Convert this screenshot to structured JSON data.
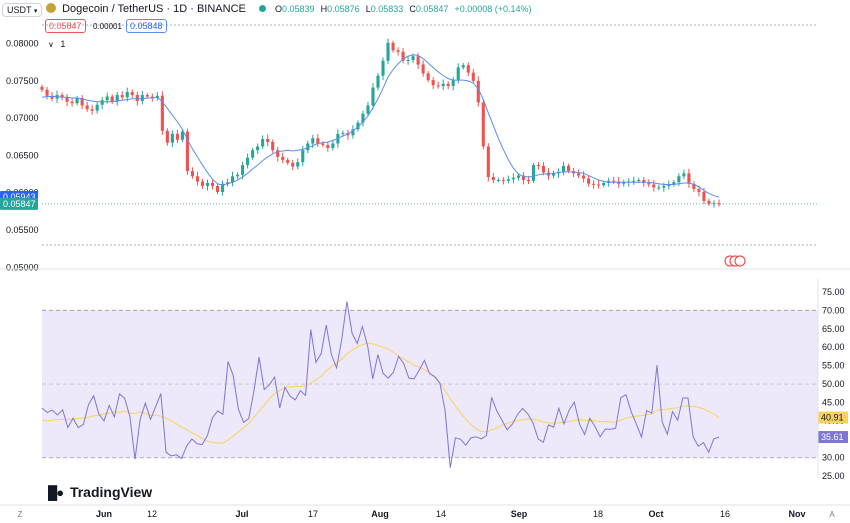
{
  "header": {
    "currency": "USDT",
    "title": "Dogecoin / TetherUS · 1D · BINANCE",
    "ohlc": {
      "o_label": "O",
      "o": "0.05839",
      "h_label": "H",
      "h": "0.05876",
      "l_label": "L",
      "l": "0.05833",
      "c_label": "C",
      "c": "0.05847",
      "change": "+0.00008 (+0.14%)"
    },
    "sell_price": "0.05847",
    "spread": "0.00001",
    "buy_price": "0.05848",
    "indicator_count": "1"
  },
  "branding": {
    "logo_text": "TradingView"
  },
  "colors": {
    "up": "#26a69a",
    "down": "#ef5350",
    "ma": "#5b8def",
    "rsi": "#7e75d6",
    "rsi_ma": "#f7d35c",
    "rsi_band": "#ede9fb"
  },
  "chart_data": [
    {
      "type": "candlestick",
      "title": "Dogecoin / TetherUS · 1D · BINANCE",
      "y_ticks": [
        "0.08000",
        "0.07500",
        "0.07000",
        "0.06500",
        "0.06000",
        "0.05500",
        "0.05000"
      ],
      "ylim": [
        0.0499,
        0.0837
      ],
      "x_ticks": [
        "Jun",
        "12",
        "Jul",
        "17",
        "Aug",
        "14",
        "Sep",
        "18",
        "Oct",
        "16",
        "Nov"
      ],
      "price_labels": {
        "ma_value": "0.05943",
        "last_price": "0.05847"
      },
      "candles_close": [
        0.0738,
        0.073,
        0.0726,
        0.0731,
        0.0728,
        0.0722,
        0.072,
        0.0727,
        0.0717,
        0.0712,
        0.071,
        0.0718,
        0.0724,
        0.0729,
        0.0722,
        0.0731,
        0.0728,
        0.0735,
        0.0731,
        0.0723,
        0.0731,
        0.0729,
        0.0727,
        0.073,
        0.0683,
        0.0667,
        0.0679,
        0.0671,
        0.0682,
        0.0629,
        0.0622,
        0.0615,
        0.0609,
        0.0613,
        0.0609,
        0.0601,
        0.0612,
        0.0614,
        0.0622,
        0.0624,
        0.0637,
        0.0647,
        0.0657,
        0.0662,
        0.0672,
        0.0668,
        0.0657,
        0.0648,
        0.0644,
        0.064,
        0.0635,
        0.0641,
        0.0657,
        0.0666,
        0.0673,
        0.0666,
        0.0664,
        0.066,
        0.0666,
        0.0679,
        0.068,
        0.0677,
        0.0685,
        0.0694,
        0.0706,
        0.0717,
        0.0741,
        0.0757,
        0.0777,
        0.0801,
        0.0791,
        0.0789,
        0.0777,
        0.0778,
        0.0783,
        0.0772,
        0.076,
        0.0751,
        0.0744,
        0.0743,
        0.0746,
        0.0743,
        0.0751,
        0.0768,
        0.0771,
        0.0761,
        0.075,
        0.0721,
        0.0662,
        0.0621,
        0.0617,
        0.0617,
        0.0616,
        0.0618,
        0.062,
        0.0623,
        0.0617,
        0.0616,
        0.0637,
        0.0636,
        0.0627,
        0.0623,
        0.0626,
        0.0628,
        0.0636,
        0.0629,
        0.0626,
        0.0623,
        0.0619,
        0.0612,
        0.0611,
        0.061,
        0.0613,
        0.0616,
        0.0615,
        0.0612,
        0.0614,
        0.0615,
        0.0616,
        0.0617,
        0.0613,
        0.0611,
        0.0607,
        0.0607,
        0.0609,
        0.0611,
        0.0614,
        0.0622,
        0.0626,
        0.0612,
        0.0605,
        0.0601,
        0.0589,
        0.0585,
        0.0586,
        0.0585
      ],
      "ma_line": [
        0.0728,
        0.0729,
        0.0729,
        0.0729,
        0.0728,
        0.0728,
        0.0727,
        0.0727,
        0.0726,
        0.0724,
        0.0723,
        0.0722,
        0.0722,
        0.0722,
        0.0722,
        0.0723,
        0.0724,
        0.0725,
        0.0726,
        0.0726,
        0.0726,
        0.0727,
        0.0727,
        0.0728,
        0.0722,
        0.0713,
        0.0704,
        0.0695,
        0.0685,
        0.0671,
        0.0659,
        0.0648,
        0.0637,
        0.0627,
        0.0618,
        0.0612,
        0.061,
        0.0612,
        0.0614,
        0.0617,
        0.0621,
        0.0626,
        0.0632,
        0.0637,
        0.0643,
        0.0648,
        0.0652,
        0.0655,
        0.0656,
        0.0657,
        0.0656,
        0.0657,
        0.0658,
        0.066,
        0.0663,
        0.0666,
        0.0667,
        0.0668,
        0.067,
        0.0673,
        0.0676,
        0.0679,
        0.0683,
        0.0688,
        0.0695,
        0.0703,
        0.0714,
        0.0726,
        0.074,
        0.0755,
        0.0765,
        0.0773,
        0.0779,
        0.0783,
        0.0785,
        0.0784,
        0.078,
        0.0774,
        0.0768,
        0.0762,
        0.0757,
        0.0753,
        0.0751,
        0.0751,
        0.0751,
        0.075,
        0.0747,
        0.0739,
        0.0725,
        0.0707,
        0.069,
        0.0673,
        0.0658,
        0.0644,
        0.0633,
        0.0625,
        0.0622,
        0.0621,
        0.0622,
        0.0624,
        0.0625,
        0.0625,
        0.0626,
        0.0627,
        0.0628,
        0.0628,
        0.0628,
        0.0627,
        0.0626,
        0.0623,
        0.062,
        0.0617,
        0.0615,
        0.0614,
        0.0614,
        0.0614,
        0.0614,
        0.0614,
        0.0614,
        0.0614,
        0.0614,
        0.0614,
        0.0613,
        0.0612,
        0.0611,
        0.0611,
        0.0611,
        0.0612,
        0.0613,
        0.0613,
        0.0611,
        0.0608,
        0.0603,
        0.0599,
        0.0596,
        0.0594
      ]
    },
    {
      "type": "line",
      "title": "RSI",
      "y_ticks": [
        "75.00",
        "70.00",
        "65.00",
        "60.00",
        "55.00",
        "50.00",
        "45.00",
        "40.00",
        "35.00",
        "30.00",
        "25.00"
      ],
      "ylim": [
        24.5,
        78.5
      ],
      "band": [
        30,
        70
      ],
      "midline": 50,
      "value_labels": {
        "rsi_ma": "40.91",
        "rsi": "35.61"
      },
      "series": [
        {
          "values": [
            43.5,
            42.3,
            42.9,
            41.6,
            43.0,
            38.2,
            40.7,
            38.2,
            39.0,
            44.4,
            46.8,
            41.9,
            40.0,
            44.2,
            41.1,
            47.3,
            46.1,
            41.2,
            29.6,
            40.5,
            44.8,
            40.4,
            43.9,
            47.4,
            31.5,
            30.5,
            30.8,
            29.8,
            33.2,
            35.1,
            33.8,
            33.6,
            36.0,
            40.9,
            42.7,
            41.8,
            56.1,
            52.3,
            43.2,
            39.6,
            40.6,
            48.1,
            57.3,
            48.5,
            49.8,
            51.9,
            43.5,
            49.1,
            46.7,
            45.7,
            48.2,
            46.9,
            64.8,
            55.9,
            58.2,
            66.0,
            58.0,
            54.4,
            62.1,
            72.4,
            63.8,
            61.0,
            65.6,
            60.4,
            51.4,
            58.0,
            52.9,
            51.6,
            53.2,
            57.5,
            55.5,
            51.6,
            51.4,
            53.8,
            56.4,
            52.8,
            52.0,
            50.2,
            42.8,
            27.3,
            35.4,
            35.0,
            33.4,
            35.4,
            35.7,
            35.1,
            36.0,
            46.4,
            42.7,
            40.2,
            37.6,
            39.1,
            41.7,
            43.4,
            41.9,
            39.5,
            35.1,
            34.2,
            38.9,
            38.3,
            43.4,
            39.2,
            42.9,
            45.1,
            39.2,
            36.3,
            40.7,
            38.5,
            35.7,
            37.8,
            37.7,
            38.0,
            46.3,
            47.1,
            42.5,
            39.2,
            35.6,
            42.8,
            42.1,
            55.1,
            39.7,
            36.4,
            42.5,
            40.2,
            46.2,
            46.2,
            35.7,
            33.1,
            34.1,
            31.5,
            35.1,
            35.6
          ]
        },
        {
          "values": [
            40.1,
            40.0,
            40.2,
            40.3,
            40.4,
            40.4,
            40.5,
            40.6,
            40.8,
            41.0,
            41.4,
            41.5,
            41.9,
            42.1,
            42.5,
            42.3,
            42.7,
            42.1,
            42.0,
            42.5,
            42.0,
            41.5,
            41.6,
            41.3,
            40.8,
            40.0,
            39.2,
            38.3,
            37.6,
            36.8,
            36.0,
            35.2,
            34.5,
            34.1,
            34.0,
            34.0,
            34.8,
            35.9,
            37.0,
            38.1,
            39.3,
            40.9,
            42.6,
            44.3,
            46.0,
            47.4,
            48.3,
            49.1,
            49.2,
            49.3,
            49.4,
            49.5,
            50.2,
            51.1,
            52.1,
            53.5,
            54.7,
            55.7,
            56.7,
            58.1,
            59.2,
            60.0,
            60.7,
            61.1,
            60.9,
            60.5,
            60.0,
            59.5,
            58.6,
            57.6,
            56.8,
            56.0,
            55.1,
            54.6,
            53.9,
            53.1,
            51.9,
            50.3,
            48.2,
            46.0,
            44.0,
            42.1,
            40.5,
            39.0,
            37.8,
            37.1,
            37.0,
            37.5,
            38.1,
            38.8,
            39.3,
            39.8,
            40.0,
            40.3,
            40.5,
            40.4,
            40.2,
            39.7,
            39.5,
            39.4,
            39.5,
            39.6,
            39.8,
            40.1,
            40.3,
            40.1,
            40.1,
            40.0,
            39.8,
            39.8,
            39.7,
            39.6,
            40.2,
            40.7,
            41.1,
            41.3,
            41.4,
            41.7,
            41.8,
            42.9,
            43.1,
            43.2,
            43.4,
            43.6,
            44.0,
            44.1,
            43.9,
            43.7,
            43.3,
            42.6,
            41.8,
            40.9
          ]
        }
      ]
    }
  ]
}
